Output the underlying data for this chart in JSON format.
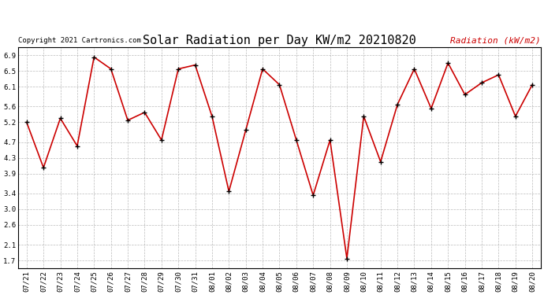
{
  "title": "Solar Radiation per Day KW/m2 20210820",
  "copyright_text": "Copyright 2021 Cartronics.com",
  "legend_label": "Radiation (kW/m2)",
  "dates": [
    "07/21",
    "07/22",
    "07/23",
    "07/24",
    "07/25",
    "07/26",
    "07/27",
    "07/28",
    "07/29",
    "07/30",
    "07/31",
    "08/01",
    "08/02",
    "08/03",
    "08/04",
    "08/05",
    "08/06",
    "08/07",
    "08/08",
    "08/09",
    "08/10",
    "08/11",
    "08/12",
    "08/13",
    "08/14",
    "08/15",
    "08/16",
    "08/17",
    "08/18",
    "08/19",
    "08/20"
  ],
  "values": [
    5.2,
    4.05,
    5.3,
    4.6,
    6.85,
    6.55,
    5.25,
    5.45,
    4.75,
    6.55,
    6.65,
    5.35,
    3.45,
    5.0,
    6.55,
    6.15,
    4.75,
    3.35,
    4.75,
    1.75,
    5.35,
    4.2,
    5.65,
    6.55,
    5.55,
    6.7,
    5.9,
    6.2,
    6.4,
    5.35,
    6.15
  ],
  "ylim": [
    1.5,
    7.1
  ],
  "yticks": [
    1.7,
    2.1,
    2.6,
    3.0,
    3.4,
    3.9,
    4.3,
    4.7,
    5.2,
    5.6,
    6.1,
    6.5,
    6.9
  ],
  "line_color": "#cc0000",
  "marker_color": "#000000",
  "bg_color": "#ffffff",
  "grid_color": "#aaaaaa",
  "title_color": "#000000",
  "copyright_color": "#000000",
  "legend_color": "#cc0000",
  "title_fontsize": 11,
  "copyright_fontsize": 6.5,
  "legend_fontsize": 8,
  "tick_fontsize": 6.5
}
